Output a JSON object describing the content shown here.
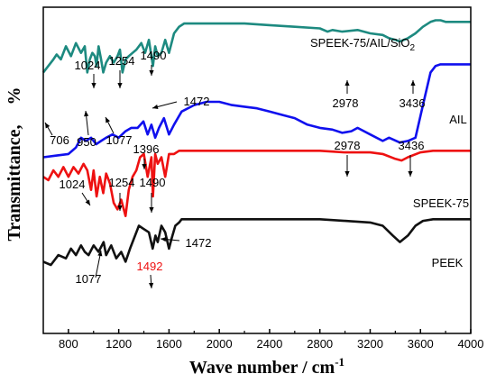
{
  "chart_data": {
    "type": "line",
    "xlabel": "Wave number / cm",
    "xlabel_sup": "-1",
    "ylabel": "Transmittance,",
    "ylabel_unit": "%",
    "xlim": [
      600,
      4000
    ],
    "ylim": [
      0,
      100
    ],
    "grid": false,
    "x_ticks": [
      800,
      1200,
      1600,
      2000,
      2400,
      2800,
      3200,
      3600,
      4000
    ],
    "series": [
      {
        "name": "SPEEK-75/AIL/SiO",
        "name_sub": "2",
        "color": "#1d8a80",
        "x": [
          600,
          640,
          680,
          706,
          740,
          780,
          820,
          860,
          900,
          930,
          950,
          970,
          990,
          1010,
          1024,
          1040,
          1060,
          1077,
          1100,
          1130,
          1160,
          1190,
          1210,
          1230,
          1254,
          1280,
          1310,
          1340,
          1380,
          1410,
          1440,
          1472,
          1490,
          1510,
          1540,
          1570,
          1600,
          1640,
          1680,
          1720,
          1800,
          1900,
          2000,
          2200,
          2400,
          2600,
          2800,
          2860,
          2900,
          2978,
          3100,
          3200,
          3300,
          3350,
          3400,
          3436,
          3500,
          3560,
          3620,
          3680,
          3720,
          3760,
          3800,
          3850,
          3900,
          4000
        ],
        "values": [
          80,
          82,
          84,
          85.5,
          84,
          88,
          85,
          89,
          86,
          88,
          80,
          84,
          86,
          85,
          82,
          88,
          84,
          80,
          83,
          85,
          83,
          85,
          87,
          80,
          84,
          85,
          86,
          87,
          89,
          86,
          90,
          82,
          88,
          85,
          86,
          90,
          86,
          92,
          94,
          95,
          95,
          95,
          95,
          95,
          94.5,
          94,
          93.5,
          92.5,
          93,
          92.5,
          93,
          92,
          91.5,
          90.5,
          90,
          89.5,
          90.5,
          92,
          94,
          95.5,
          96,
          96,
          95.5,
          95.5,
          95.5,
          95.5
        ]
      },
      {
        "name": "AIL",
        "color": "#1010ee",
        "x": [
          600,
          700,
          800,
          860,
          900,
          940,
          980,
          1020,
          1060,
          1100,
          1150,
          1200,
          1254,
          1300,
          1350,
          1396,
          1430,
          1460,
          1490,
          1520,
          1560,
          1600,
          1640,
          1700,
          1800,
          1900,
          2000,
          2100,
          2200,
          2300,
          2400,
          2500,
          2600,
          2700,
          2800,
          2900,
          2978,
          3050,
          3100,
          3200,
          3300,
          3350,
          3436,
          3500,
          3560,
          3620,
          3680,
          3720,
          3760,
          3800,
          3900,
          4000
        ],
        "values": [
          54,
          54.5,
          55,
          57,
          60,
          59,
          60,
          58,
          59,
          60,
          61,
          60,
          62,
          63,
          63,
          65,
          61,
          64,
          60,
          63,
          66,
          61,
          64,
          68,
          70,
          71,
          71,
          70,
          69.5,
          69,
          68,
          67,
          66,
          64,
          63,
          62.5,
          61.5,
          62,
          63,
          61,
          59,
          60,
          58.5,
          59,
          60,
          70,
          80,
          82,
          82.5,
          82.5,
          82.5,
          82.5
        ]
      },
      {
        "name": "SPEEK-75",
        "color": "#ee1111",
        "x": [
          600,
          640,
          680,
          720,
          760,
          800,
          840,
          880,
          920,
          950,
          980,
          1000,
          1024,
          1050,
          1077,
          1100,
          1130,
          1160,
          1190,
          1220,
          1254,
          1280,
          1310,
          1340,
          1370,
          1400,
          1430,
          1460,
          1472,
          1490,
          1510,
          1540,
          1570,
          1600,
          1640,
          1680,
          1720,
          1800,
          2000,
          2400,
          2800,
          3000,
          3200,
          3300,
          3400,
          3450,
          3500,
          3600,
          3700,
          3800,
          3900,
          4000
        ],
        "values": [
          48,
          47,
          50,
          48,
          51,
          48,
          51,
          49,
          52,
          50,
          44,
          50,
          42,
          48,
          43,
          49,
          46,
          40,
          38,
          41,
          36,
          44,
          48,
          50,
          54,
          55,
          48,
          54,
          42,
          55,
          52,
          54,
          48,
          55,
          55,
          56,
          56,
          56,
          56,
          56,
          56,
          55.5,
          55.5,
          55,
          53.5,
          53,
          54,
          55.5,
          56,
          56,
          56,
          56
        ]
      },
      {
        "name": "PEEK",
        "color": "#111111",
        "x": [
          600,
          660,
          720,
          780,
          820,
          860,
          900,
          930,
          960,
          1000,
          1040,
          1080,
          1100,
          1140,
          1180,
          1220,
          1254,
          1290,
          1330,
          1360,
          1400,
          1440,
          1470,
          1492,
          1510,
          1540,
          1570,
          1600,
          1620,
          1650,
          1680,
          1700,
          1800,
          2000,
          2400,
          2800,
          3000,
          3200,
          3300,
          3380,
          3436,
          3500,
          3560,
          3620,
          3700,
          3800,
          4000
        ],
        "values": [
          22,
          21,
          24,
          23,
          26,
          24,
          27,
          25,
          24,
          27,
          25,
          28,
          24,
          27,
          23,
          25,
          22,
          26,
          30,
          33,
          32,
          31,
          26,
          30,
          28,
          33,
          31,
          26,
          29,
          33,
          34,
          35,
          35,
          35,
          35,
          35,
          34.5,
          34,
          33,
          30,
          28,
          30,
          33,
          34.5,
          35,
          35,
          35
        ]
      }
    ],
    "annotations": [
      {
        "text": "706",
        "color": "#000000"
      },
      {
        "text": "950",
        "color": "#000000"
      },
      {
        "text": "1024",
        "color": "#000000"
      },
      {
        "text": "1077",
        "color": "#000000"
      },
      {
        "text": "1254",
        "color": "#000000"
      },
      {
        "text": "1490",
        "color": "#000000"
      },
      {
        "text": "1472",
        "color": "#000000"
      },
      {
        "text": "2978",
        "color": "#000000"
      },
      {
        "text": "3436",
        "color": "#000000"
      },
      {
        "text": "1396",
        "color": "#000000"
      },
      {
        "text": "2978",
        "color": "#000000"
      },
      {
        "text": "3436",
        "color": "#000000"
      },
      {
        "text": "1024",
        "color": "#000000"
      },
      {
        "text": "1254",
        "color": "#000000"
      },
      {
        "text": "1490",
        "color": "#000000"
      },
      {
        "text": "1472",
        "color": "#000000"
      },
      {
        "text": "1077",
        "color": "#000000"
      },
      {
        "text": "1492",
        "color": "#ee1111"
      }
    ]
  }
}
